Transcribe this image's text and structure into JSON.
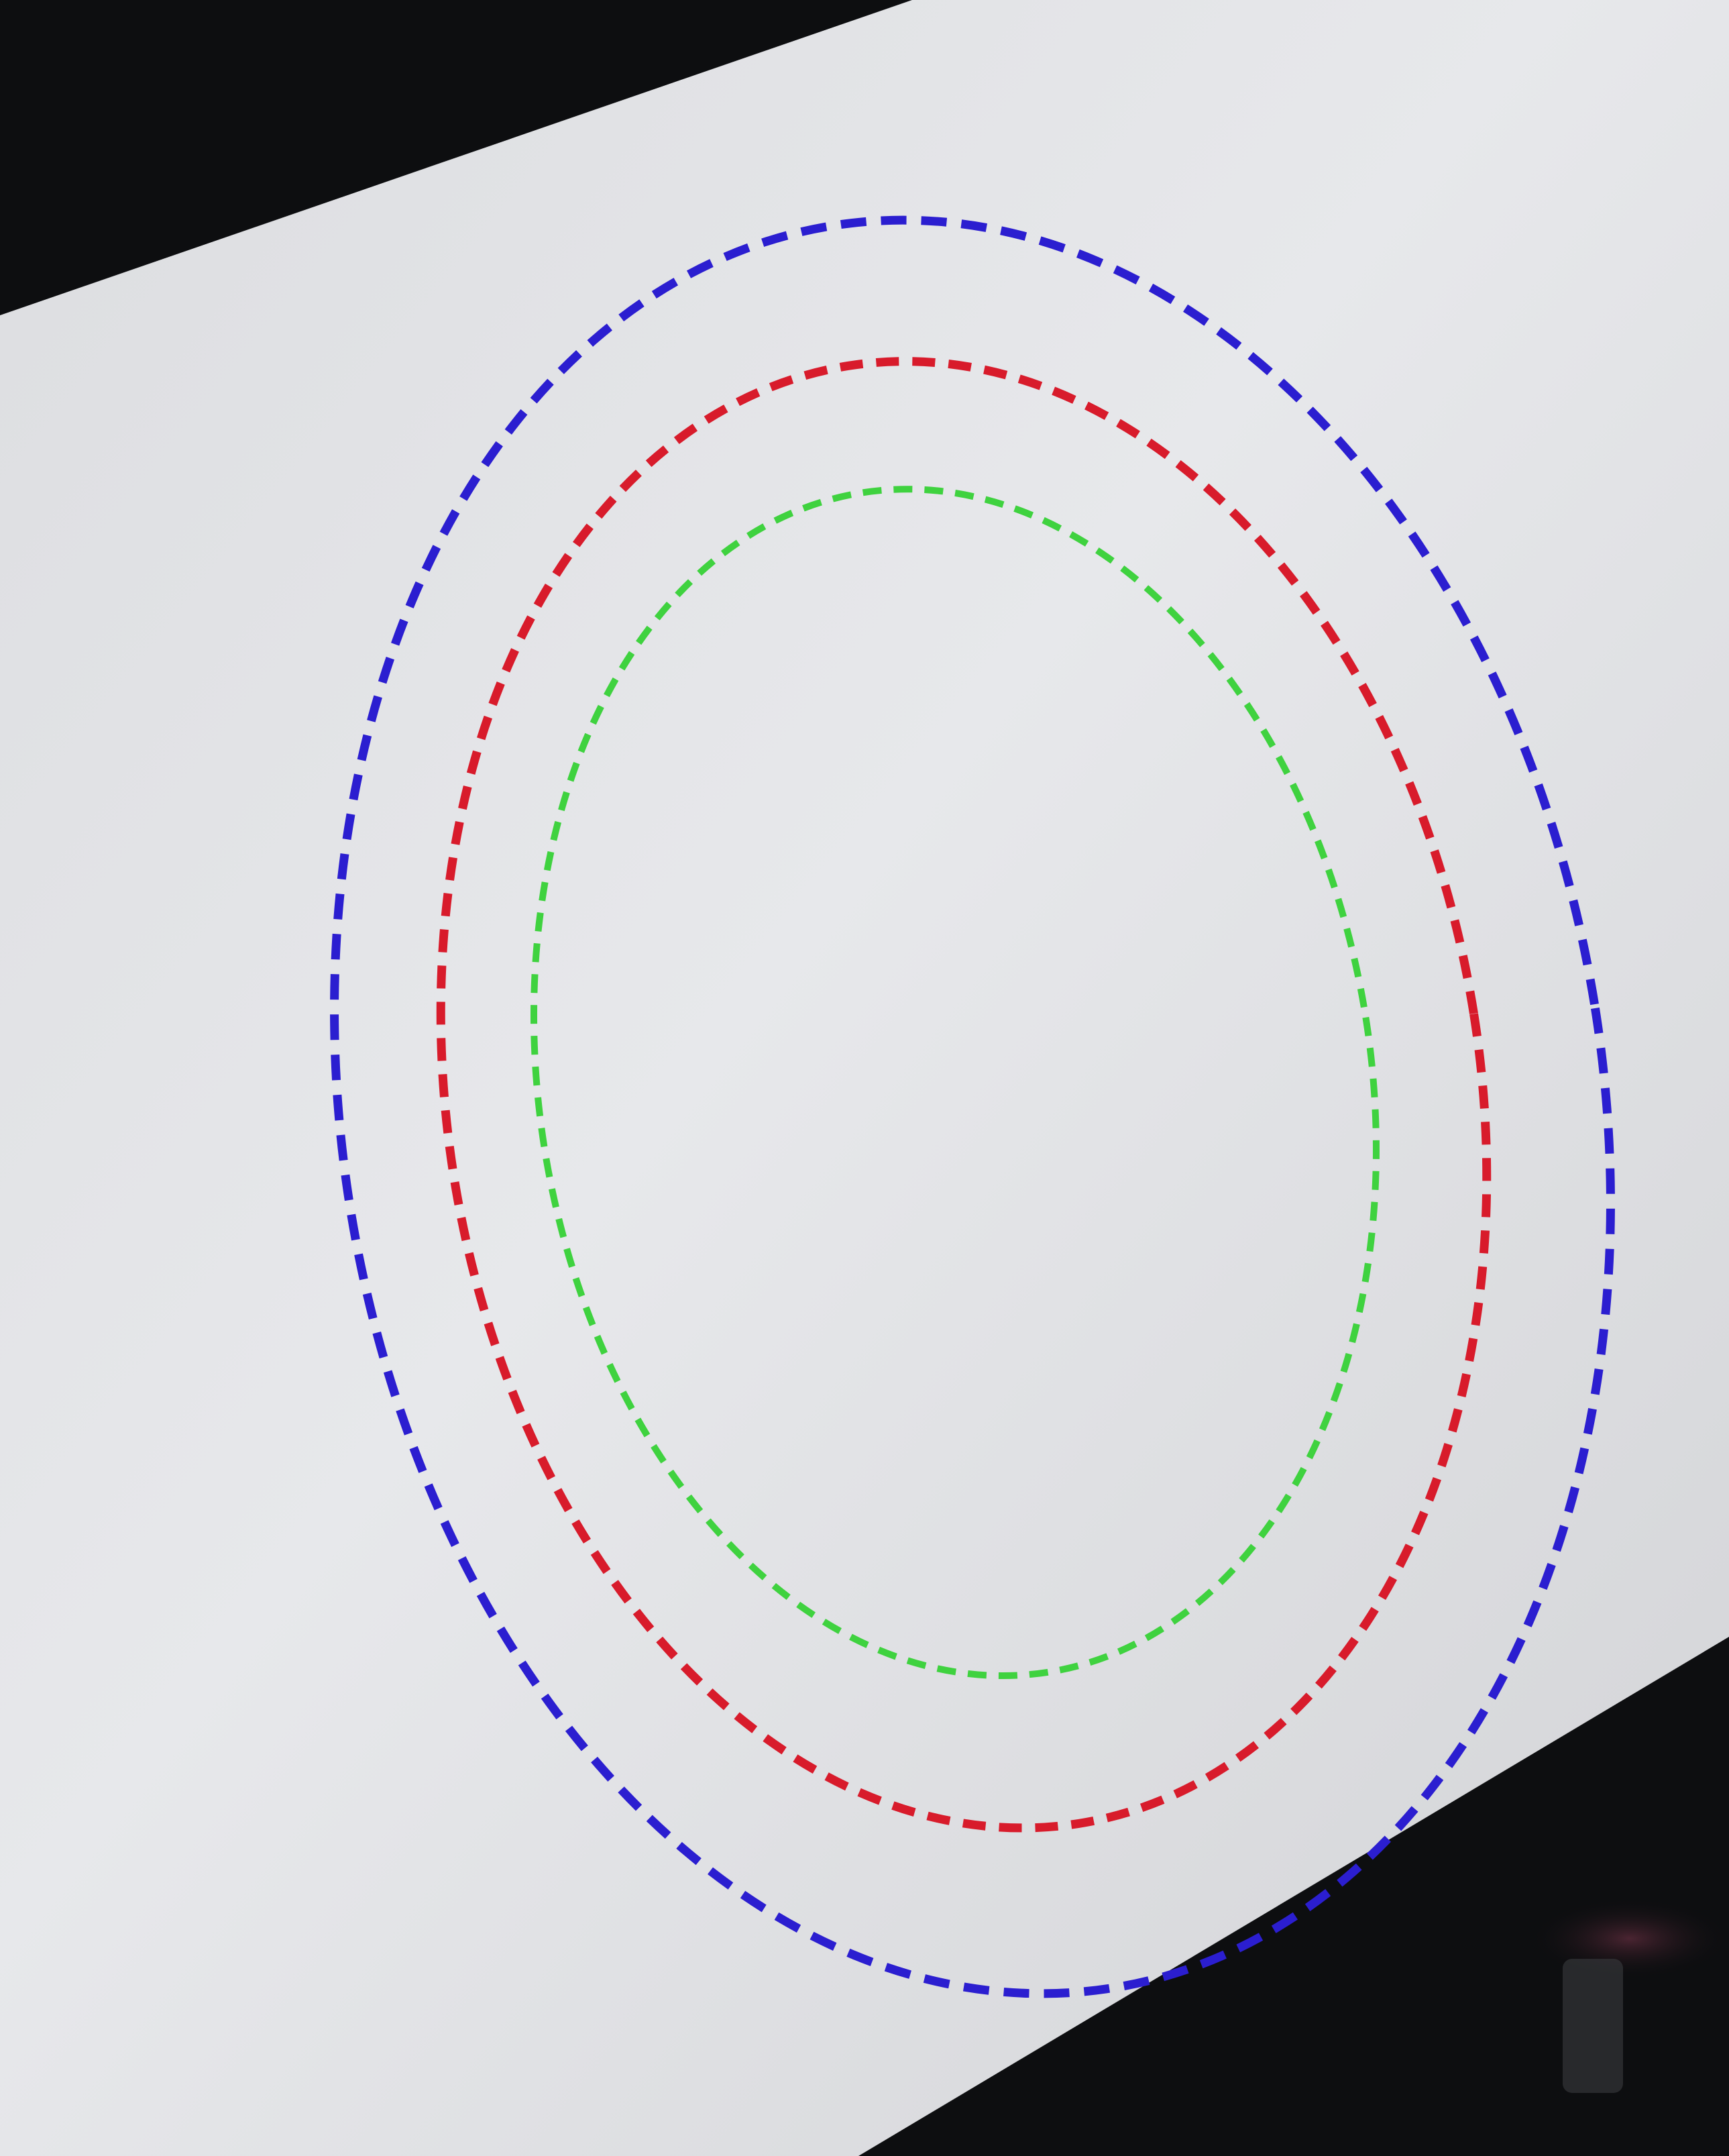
{
  "scene": {
    "description_colors": {
      "background_dark": "#0d0e10",
      "screen_light": "#e6e7ea",
      "screen_shade": "#d4d5d8"
    },
    "rings": [
      {
        "name": "outer-ring",
        "color": "#2b1ed0",
        "style": "dashed"
      },
      {
        "name": "middle-ring",
        "color": "#d81b2b",
        "style": "dashed"
      },
      {
        "name": "inner-ring",
        "color": "#3fd23f",
        "style": "dashed"
      }
    ]
  }
}
